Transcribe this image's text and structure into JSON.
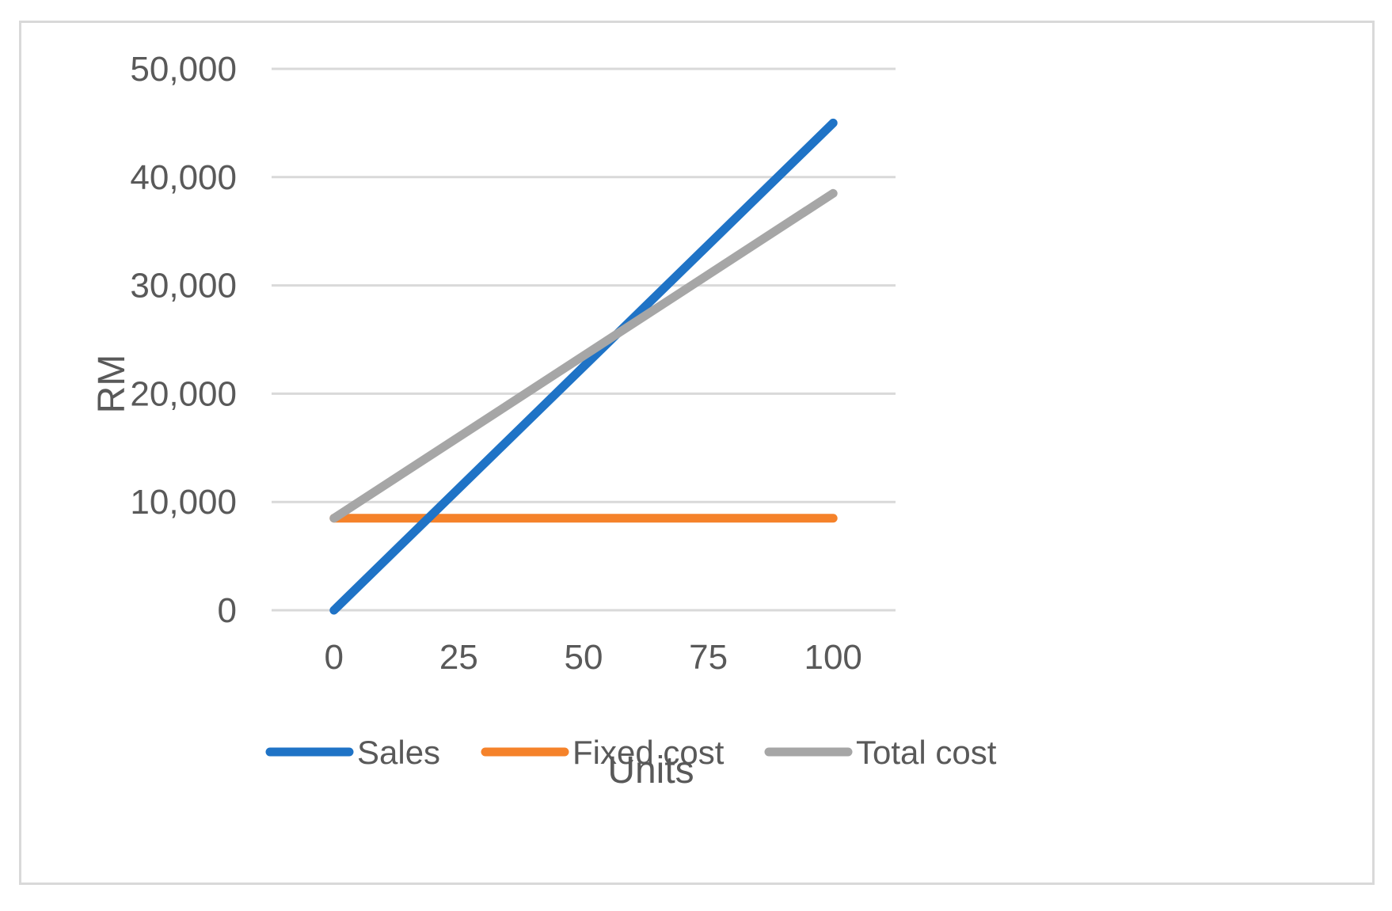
{
  "chart_data": {
    "type": "line",
    "x": [
      0,
      100
    ],
    "xticks": [
      "0",
      "25",
      "50",
      "75",
      "100"
    ],
    "xtick_values": [
      0,
      25,
      50,
      75,
      100
    ],
    "xlim": [
      -12.5,
      112.5
    ],
    "yticks": [
      "0",
      "10,000",
      "20,000",
      "30,000",
      "40,000",
      "50,000"
    ],
    "ytick_values": [
      0,
      10000,
      20000,
      30000,
      40000,
      50000
    ],
    "ylim": [
      0,
      50000
    ],
    "xlabel": "Units",
    "ylabel": "RM",
    "grid": true,
    "legend_position": "bottom",
    "series": [
      {
        "name": "Sales",
        "color": "#1f73c6",
        "values": [
          0,
          45000
        ]
      },
      {
        "name": "Fixed cost",
        "color": "#f5822a",
        "values": [
          8500,
          8500
        ]
      },
      {
        "name": "Total cost",
        "color": "#a6a6a6",
        "values": [
          8500,
          38500
        ]
      }
    ]
  }
}
